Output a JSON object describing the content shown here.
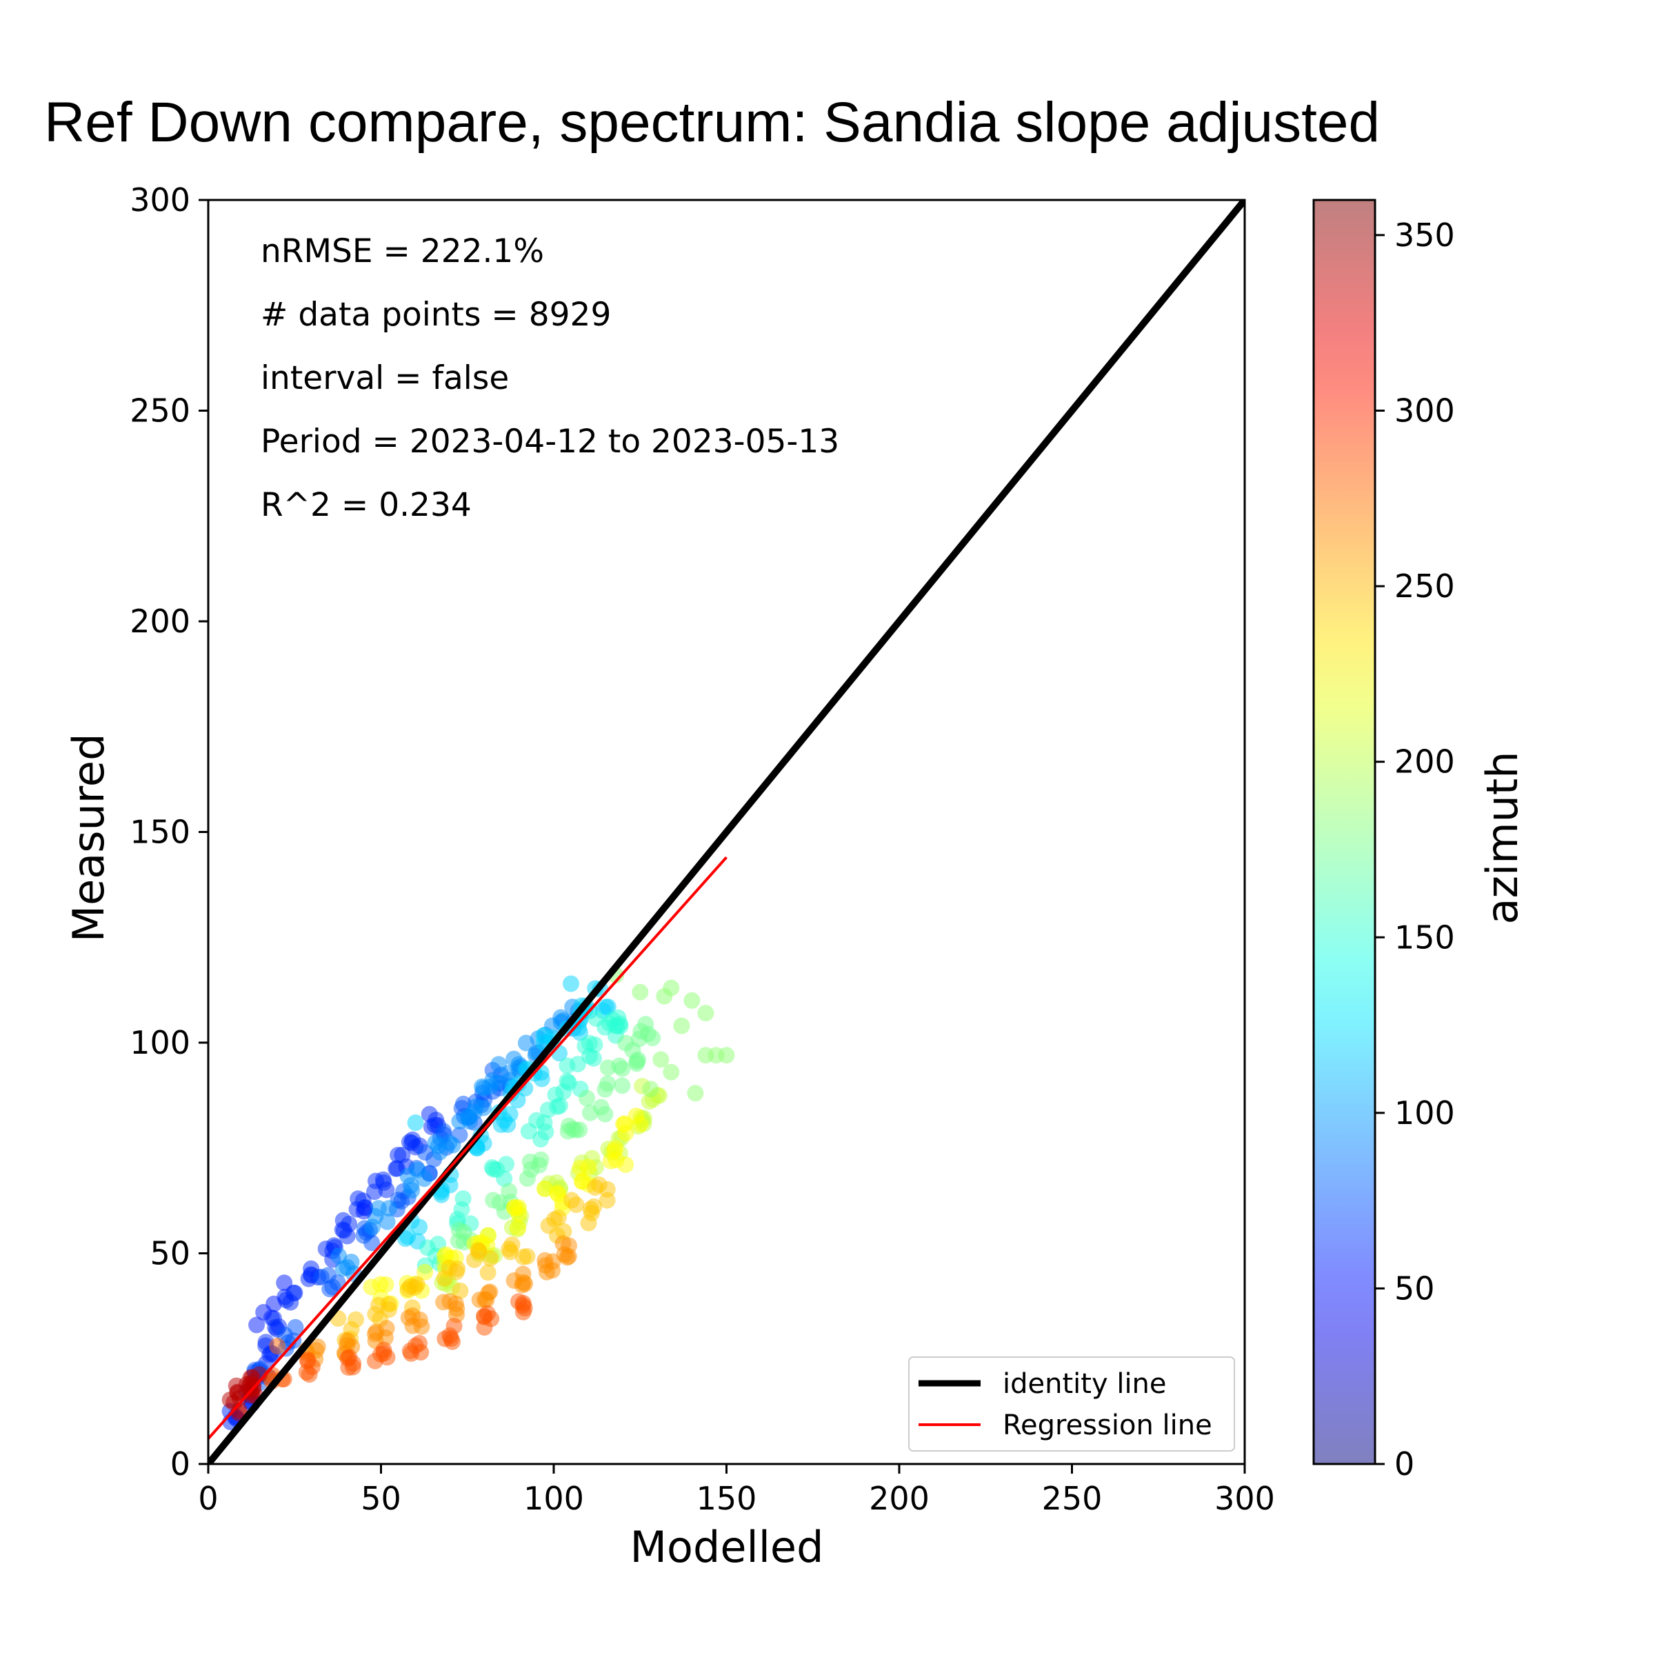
{
  "chart_data": {
    "type": "scatter",
    "title": "Ref Down compare, spectrum: Sandia slope adjusted",
    "xlabel": "Modelled",
    "ylabel": "Measured",
    "xlim": [
      0,
      300
    ],
    "ylim": [
      0,
      300
    ],
    "x_ticks": [
      0,
      50,
      100,
      150,
      200,
      250,
      300
    ],
    "y_ticks": [
      0,
      50,
      100,
      150,
      200,
      250,
      300
    ],
    "grid": false,
    "annotations": [
      "nRMSE = 222.1%",
      "# data points = 8929",
      "interval = false",
      "Period = 2023-04-12 to 2023-05-13",
      "R^2 = 0.234"
    ],
    "colorbar": {
      "label": "azimuth",
      "range": [
        0,
        360
      ],
      "ticks": [
        0,
        50,
        100,
        150,
        200,
        250,
        300,
        350
      ],
      "colormap": "jet",
      "alpha": 0.5
    },
    "legend": {
      "placement": "lower-right",
      "entries": [
        {
          "label": "identity line",
          "color": "#000000"
        },
        {
          "label": "Regression line",
          "color": "#ff0000"
        }
      ]
    },
    "lines": [
      {
        "name": "identity line",
        "color": "#000000",
        "x": [
          0,
          300
        ],
        "y": [
          0,
          300
        ]
      },
      {
        "name": "Regression line",
        "color": "#ff0000",
        "x": [
          0,
          150
        ],
        "y": [
          6,
          144
        ]
      }
    ],
    "scatter_bands": [
      {
        "azimuth": 60,
        "spread": 2,
        "points": [
          [
            8,
            11
          ],
          [
            12,
            16
          ],
          [
            15,
            22
          ],
          [
            18,
            27
          ],
          [
            20,
            33
          ],
          [
            24,
            40
          ],
          [
            30,
            45
          ],
          [
            35,
            50
          ],
          [
            40,
            56
          ],
          [
            45,
            61
          ],
          [
            50,
            66
          ],
          [
            56,
            72
          ],
          [
            60,
            77
          ],
          [
            66,
            82
          ]
        ]
      },
      {
        "azimuth": 75,
        "spread": 3,
        "points": [
          [
            16,
            20
          ],
          [
            25,
            30
          ],
          [
            35,
            42
          ],
          [
            45,
            53
          ],
          [
            55,
            63
          ],
          [
            63,
            71
          ],
          [
            70,
            78
          ],
          [
            75,
            83
          ],
          [
            80,
            88
          ],
          [
            85,
            92
          ]
        ]
      },
      {
        "azimuth": 95,
        "spread": 3,
        "points": [
          [
            40,
            48
          ],
          [
            50,
            58
          ],
          [
            60,
            67
          ],
          [
            68,
            75
          ],
          [
            75,
            82
          ],
          [
            80,
            87
          ],
          [
            85,
            92
          ],
          [
            90,
            96
          ],
          [
            95,
            100
          ],
          [
            100,
            103
          ],
          [
            105,
            106
          ]
        ]
      },
      {
        "azimuth": 120,
        "spread": 3,
        "points": [
          [
            60,
            55
          ],
          [
            70,
            66
          ],
          [
            80,
            76
          ],
          [
            85,
            82
          ],
          [
            90,
            88
          ],
          [
            95,
            94
          ],
          [
            100,
            100
          ],
          [
            105,
            104
          ],
          [
            110,
            107
          ],
          [
            115,
            110
          ]
        ]
      },
      {
        "azimuth": 150,
        "spread": 3,
        "points": [
          [
            65,
            50
          ],
          [
            75,
            60
          ],
          [
            85,
            70
          ],
          [
            95,
            80
          ],
          [
            100,
            86
          ],
          [
            105,
            92
          ],
          [
            110,
            98
          ],
          [
            115,
            104
          ],
          [
            120,
            106
          ]
        ]
      },
      {
        "azimuth": 175,
        "spread": 3,
        "points": [
          [
            75,
            55
          ],
          [
            85,
            62
          ],
          [
            95,
            70
          ],
          [
            105,
            78
          ],
          [
            112,
            86
          ],
          [
            118,
            92
          ],
          [
            123,
            98
          ],
          [
            127,
            102
          ]
        ]
      },
      {
        "azimuth": 205,
        "spread": 3,
        "points": [
          [
            70,
            45
          ],
          [
            80,
            52
          ],
          [
            90,
            58
          ],
          [
            100,
            64
          ],
          [
            110,
            70
          ],
          [
            118,
            76
          ],
          [
            124,
            82
          ],
          [
            128,
            88
          ]
        ]
      },
      {
        "azimuth": 225,
        "spread": 3,
        "points": [
          [
            50,
            40
          ],
          [
            60,
            44
          ],
          [
            70,
            49
          ],
          [
            80,
            54
          ],
          [
            90,
            58
          ],
          [
            100,
            63
          ],
          [
            110,
            68
          ],
          [
            118,
            74
          ],
          [
            123,
            80
          ]
        ]
      },
      {
        "azimuth": 245,
        "spread": 3,
        "points": [
          [
            40,
            32
          ],
          [
            50,
            36
          ],
          [
            60,
            40
          ],
          [
            70,
            44
          ],
          [
            80,
            48
          ],
          [
            90,
            52
          ],
          [
            100,
            56
          ],
          [
            108,
            60
          ],
          [
            114,
            64
          ]
        ]
      },
      {
        "azimuth": 265,
        "spread": 2,
        "points": [
          [
            30,
            26
          ],
          [
            40,
            28
          ],
          [
            50,
            31
          ],
          [
            60,
            34
          ],
          [
            70,
            37
          ],
          [
            80,
            40
          ],
          [
            90,
            44
          ],
          [
            98,
            47
          ],
          [
            104,
            51
          ]
        ]
      },
      {
        "azimuth": 285,
        "spread": 2,
        "points": [
          [
            20,
            21
          ],
          [
            30,
            23
          ],
          [
            40,
            24
          ],
          [
            50,
            26
          ],
          [
            60,
            28
          ],
          [
            70,
            31
          ],
          [
            80,
            34
          ],
          [
            90,
            38
          ]
        ]
      },
      {
        "azimuth": 340,
        "spread": 2,
        "points": [
          [
            8,
            14
          ],
          [
            10,
            18
          ],
          [
            12,
            16
          ],
          [
            14,
            20
          ]
        ]
      }
    ],
    "outliers": [
      [
        105,
        114
      ],
      [
        118,
        116
      ],
      [
        125,
        112
      ],
      [
        132,
        111
      ],
      [
        134,
        113
      ],
      [
        140,
        110
      ],
      [
        144,
        107
      ],
      [
        137,
        104
      ],
      [
        144,
        97
      ],
      [
        147,
        97
      ],
      [
        131,
        96
      ],
      [
        134,
        93
      ],
      [
        141,
        88
      ],
      [
        128,
        89
      ],
      [
        22,
        43
      ],
      [
        19,
        38
      ],
      [
        16,
        36
      ],
      [
        14,
        33
      ],
      [
        20,
        28
      ],
      [
        45,
        60
      ],
      [
        60,
        81
      ],
      [
        150,
        97
      ]
    ]
  }
}
